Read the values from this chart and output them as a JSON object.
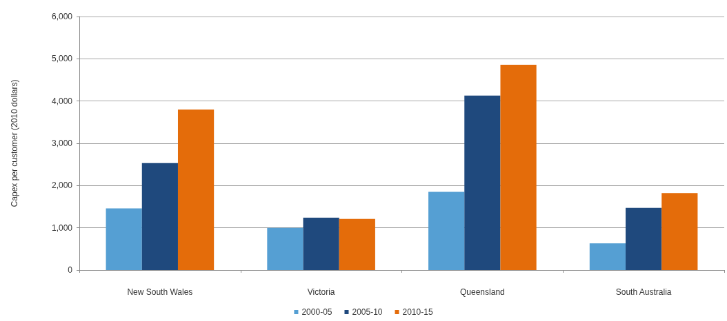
{
  "chart_data": {
    "type": "bar",
    "ylabel": "Capex per customer (2010 dollars)",
    "categories": [
      "New South Wales",
      "Victoria",
      "Queensland",
      "South Australia"
    ],
    "series": [
      {
        "name": "2000-05",
        "color": "#559fd3",
        "values": [
          1460,
          1000,
          1850,
          630
        ]
      },
      {
        "name": "2005-10",
        "color": "#1f497d",
        "values": [
          2530,
          1240,
          4130,
          1470
        ]
      },
      {
        "name": "2010-15",
        "color": "#e46c0a",
        "values": [
          3800,
          1210,
          4860,
          1820
        ]
      }
    ],
    "ylim": [
      0,
      6000
    ],
    "yticks": [
      0,
      {
        "value": 1000,
        "label": "1,000"
      },
      {
        "value": 2000,
        "label": "2,000"
      },
      {
        "value": 3000,
        "label": "3,000"
      },
      {
        "value": 4000,
        "label": "4,000"
      },
      {
        "value": 5000,
        "label": "5,000"
      },
      {
        "value": 6000,
        "label": "6,000"
      }
    ],
    "grid": "y",
    "legend": "bottom"
  }
}
